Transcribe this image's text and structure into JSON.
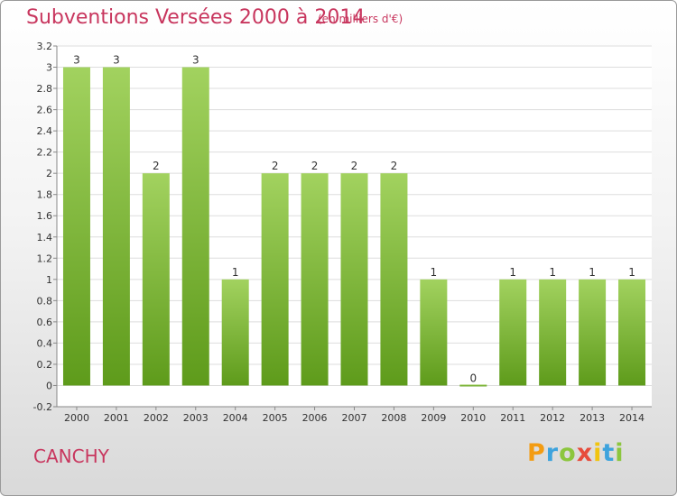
{
  "header": {
    "title": "Subventions Versées 2000 à 2014",
    "subtitle": "(en milliers d'€)"
  },
  "footer": {
    "commune": "CANCHY",
    "logo_text": "Proxiti"
  },
  "colors": {
    "title": "#c8365e",
    "bar_top": "#9ed05a",
    "bar_bottom": "#5d9a1a",
    "grid": "#dddddd",
    "axis_text": "#333333"
  },
  "chart_data": {
    "type": "bar",
    "categories": [
      "2000",
      "2001",
      "2002",
      "2003",
      "2004",
      "2005",
      "2006",
      "2007",
      "2008",
      "2009",
      "2010",
      "2011",
      "2012",
      "2013",
      "2014"
    ],
    "values": [
      3,
      3,
      2,
      3,
      1,
      2,
      2,
      2,
      2,
      1,
      0,
      1,
      1,
      1,
      1
    ],
    "data_labels": [
      "3",
      "3",
      "2",
      "3",
      "1",
      "2",
      "2",
      "2",
      "2",
      "1",
      "0",
      "1",
      "1",
      "1",
      "1"
    ],
    "y_ticks": [
      "-0.2",
      "0",
      "0.2",
      "0.4",
      "0.6",
      "0.8",
      "1",
      "1.2",
      "1.4",
      "1.6",
      "1.8",
      "2",
      "2.2",
      "2.4",
      "2.6",
      "2.8",
      "3",
      "3.2"
    ],
    "ylim": [
      -0.2,
      3.2
    ],
    "title": "Subventions Versées 2000 à 2014",
    "xlabel": "",
    "ylabel": "",
    "grid": true
  }
}
